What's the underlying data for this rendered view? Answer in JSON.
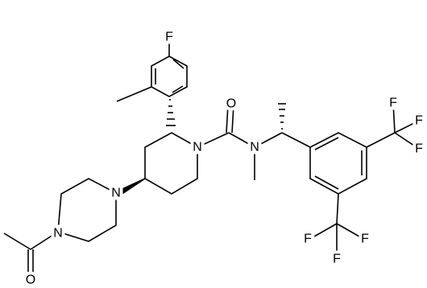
{
  "atoms": [
    "F",
    "O",
    "N",
    "N",
    "N",
    "N",
    "O",
    "F",
    "F",
    "F",
    "F",
    "F",
    "F"
  ]
}
